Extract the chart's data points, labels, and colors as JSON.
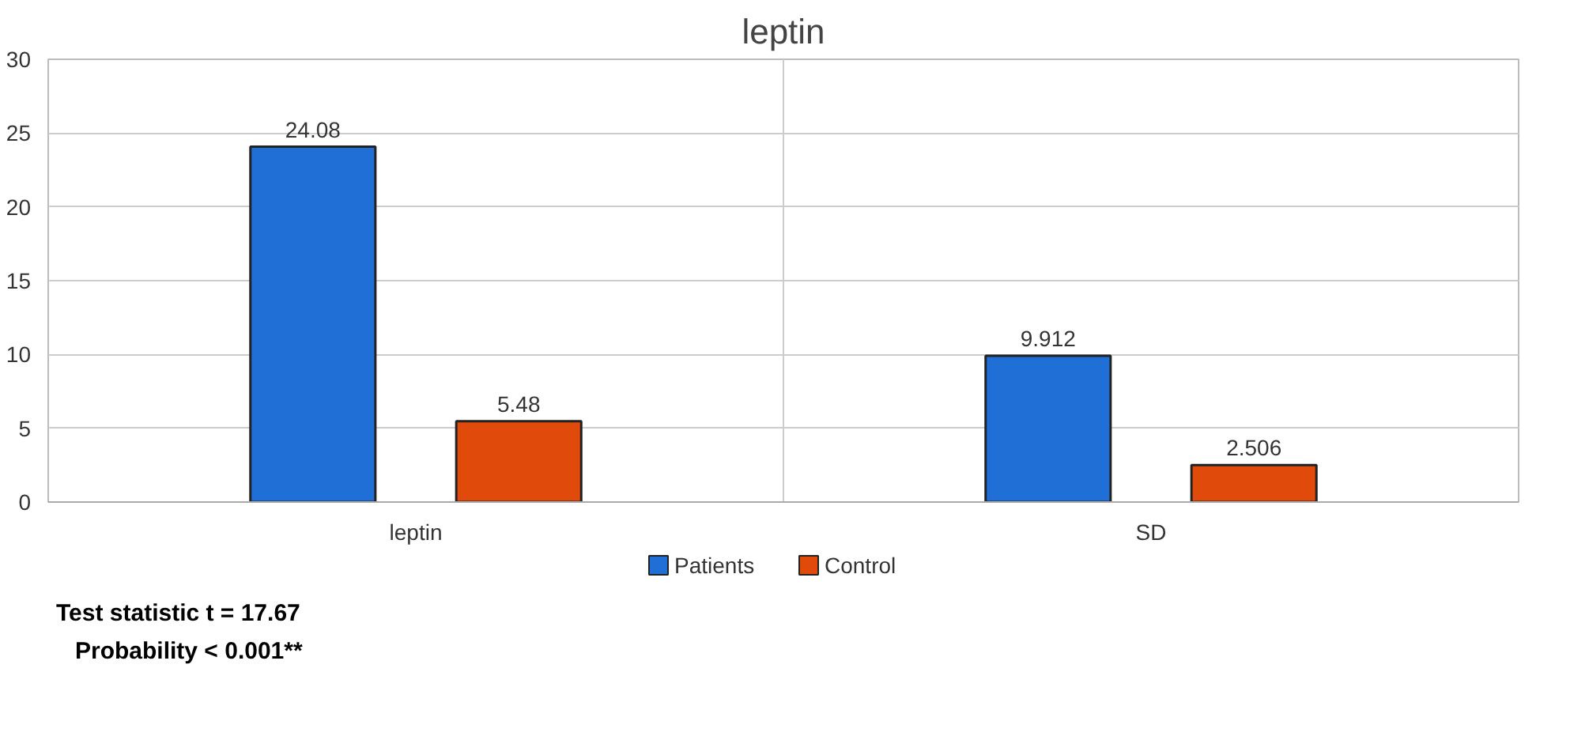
{
  "chart_data": {
    "type": "bar",
    "title": "leptin",
    "categories": [
      "leptin",
      "SD"
    ],
    "series": [
      {
        "name": "Patients",
        "color": "#1f6fd6",
        "values": [
          24.08,
          9.912
        ]
      },
      {
        "name": "Control",
        "color": "#e04a0a",
        "values": [
          5.48,
          2.506
        ]
      }
    ],
    "ylim": [
      0,
      30
    ],
    "yticks": [
      0,
      5,
      10,
      15,
      20,
      25,
      30
    ],
    "grid": true,
    "legend": "bottom",
    "data_labels": true,
    "annotations": [
      "Test statistic t = 17.67",
      "Probability < 0.001**"
    ]
  }
}
